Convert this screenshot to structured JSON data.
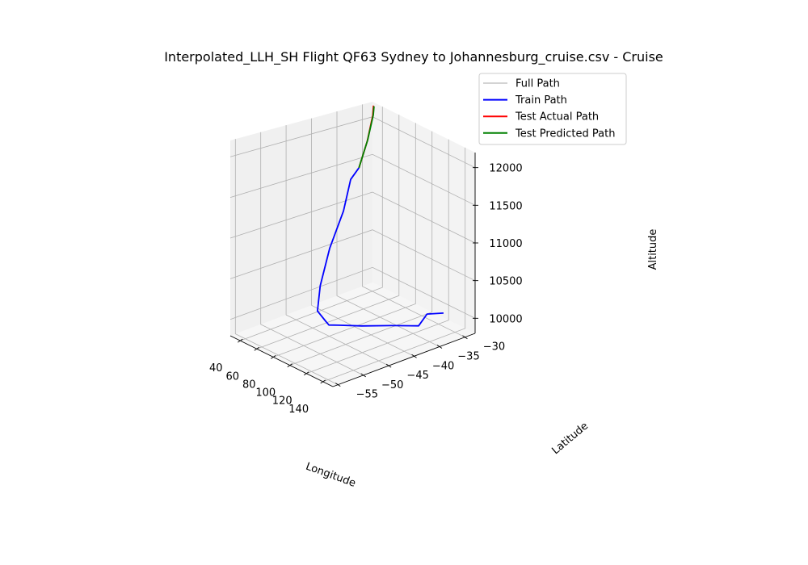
{
  "chart_data": {
    "type": "line3d",
    "title": "Interpolated_LLH_SH Flight QF63 Sydney to Johannesburg_cruise.csv - Cruise",
    "xlabel": "Longitude",
    "ylabel": "Latitude",
    "zlabel": "Altitude",
    "xlim": [
      28,
      152
    ],
    "ylim": [
      -56,
      -28
    ],
    "zlim": [
      9800,
      12200
    ],
    "x_ticks": [
      40,
      60,
      80,
      100,
      120,
      140
    ],
    "y_ticks": [
      -30,
      -35,
      -40,
      -45,
      -50,
      -55
    ],
    "z_ticks": [
      10000,
      10500,
      11000,
      11500,
      12000
    ],
    "grid": true,
    "legend_position": "top-right",
    "legend": [
      {
        "name": "Full Path",
        "color": "#d3d3d3"
      },
      {
        "name": "Train Path",
        "color": "#0000ff"
      },
      {
        "name": "Test Actual Path",
        "color": "#ff0000"
      },
      {
        "name": "Test Predicted Path",
        "color": "#008000"
      }
    ],
    "series": [
      {
        "name": "Train Path",
        "color": "#0000ff",
        "points": [
          [
            150,
            -33.9,
            10200
          ],
          [
            143,
            -36,
            10200
          ],
          [
            139,
            -37,
            10050
          ],
          [
            125,
            -40,
            10050
          ],
          [
            110,
            -43.5,
            10050
          ],
          [
            97,
            -46,
            10050
          ],
          [
            92,
            -47,
            10050
          ],
          [
            85,
            -46.5,
            10050
          ],
          [
            72,
            -46,
            10100
          ],
          [
            60,
            -43.5,
            10300
          ],
          [
            50,
            -40,
            10650
          ],
          [
            42,
            -36,
            11000
          ],
          [
            38.5,
            -34,
            11350
          ],
          [
            36.2,
            -32,
            11450
          ]
        ]
      },
      {
        "name": "Test Actual Path",
        "color": "#ff0000",
        "points": [
          [
            36.2,
            -32,
            11450
          ],
          [
            34,
            -30,
            11750
          ],
          [
            32,
            -28.6,
            12050
          ],
          [
            31,
            -28.3,
            12170
          ]
        ]
      },
      {
        "name": "Test Predicted Path",
        "color": "#008000",
        "points": [
          [
            36.2,
            -32,
            11450
          ],
          [
            33.8,
            -29.9,
            11760
          ],
          [
            32,
            -28.5,
            12055
          ],
          [
            31.1,
            -28.2,
            12160
          ]
        ]
      }
    ]
  }
}
